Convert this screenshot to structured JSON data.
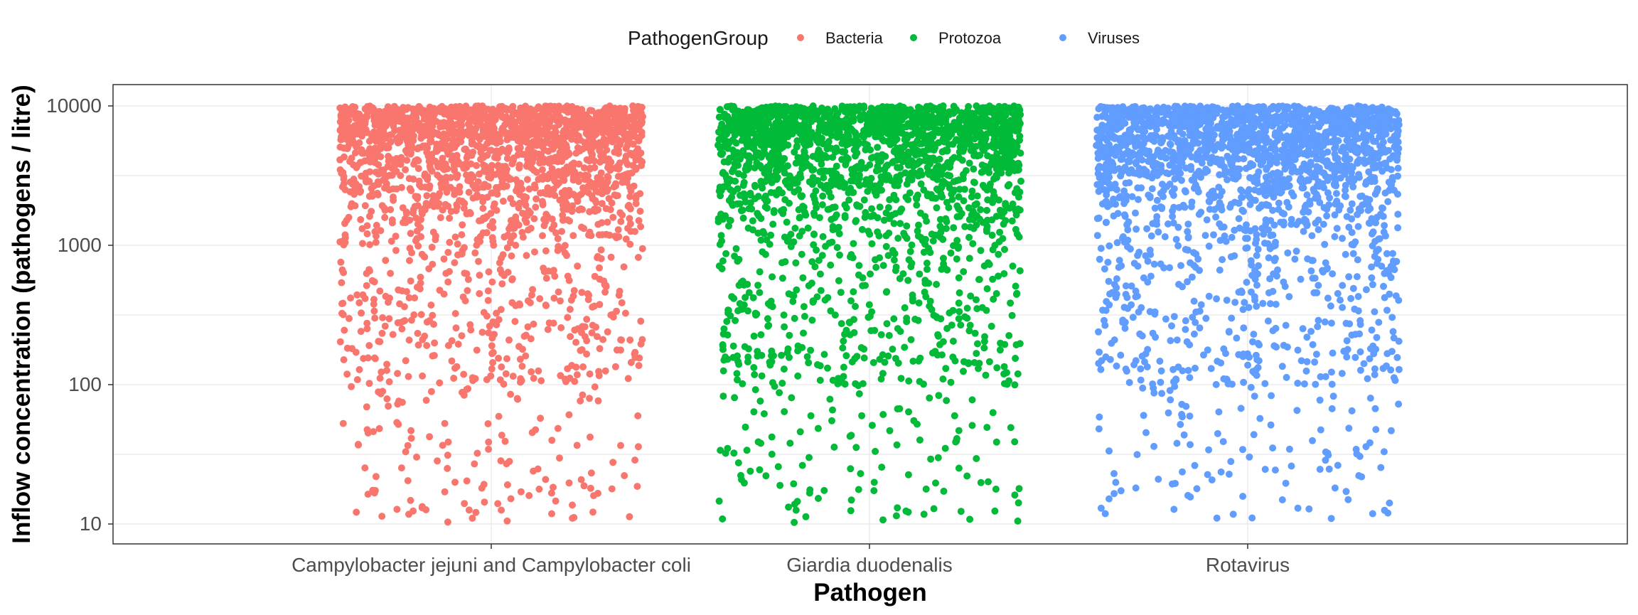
{
  "chart_data": {
    "type": "scatter",
    "title": "",
    "xlabel": "Pathogen",
    "ylabel": "Inflow concentration (pathogens / litre)",
    "y_scale": "log10",
    "ylim": [
      10,
      10000
    ],
    "y_ticks": [
      "10",
      "100",
      "1000",
      "10000"
    ],
    "y_tick_values": [
      10,
      100,
      1000,
      10000
    ],
    "categories": [
      "Campylobacter jejuni and Campylobacter coli",
      "Giardia duodenalis",
      "Rotavirus"
    ],
    "grid": true,
    "jitter": true,
    "legend": {
      "title": "PathogenGroup",
      "position": "top",
      "entries": [
        {
          "name": "Bacteria",
          "color": "#F8766D"
        },
        {
          "name": "Protozoa",
          "color": "#00BA38"
        },
        {
          "name": "Viruses",
          "color": "#619CFF"
        }
      ]
    },
    "series": [
      {
        "name": "Bacteria",
        "category": "Campylobacter jejuni and Campylobacter coli",
        "color": "#F8766D",
        "approx_points": 5000,
        "distribution": "log-uniform-like, dense near upper limit",
        "y_min": 10,
        "y_max": 10000
      },
      {
        "name": "Protozoa",
        "category": "Giardia duodenalis",
        "color": "#00BA38",
        "approx_points": 5000,
        "distribution": "log-uniform-like, dense near upper limit",
        "y_min": 10,
        "y_max": 10000
      },
      {
        "name": "Viruses",
        "category": "Rotavirus",
        "color": "#619CFF",
        "approx_points": 5000,
        "distribution": "log-uniform-like, dense near upper limit",
        "y_min": 10,
        "y_max": 10000
      }
    ]
  }
}
